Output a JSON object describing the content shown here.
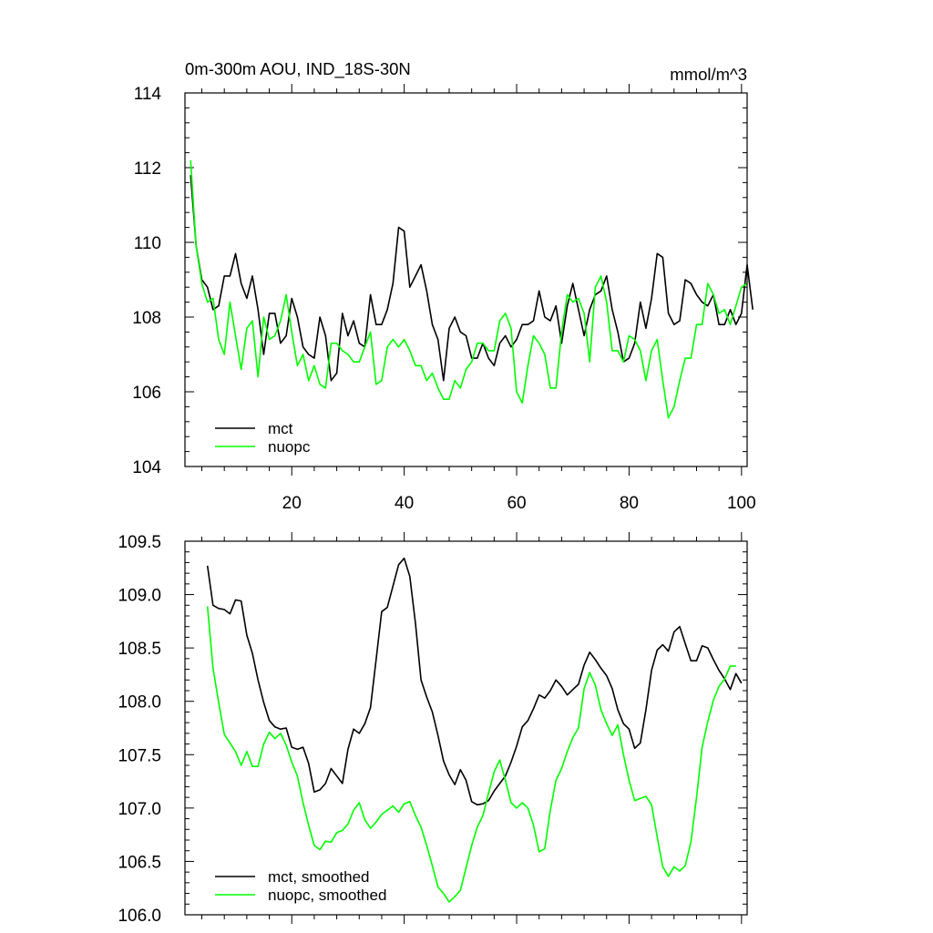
{
  "chart_data": [
    {
      "type": "line",
      "title": "0m-300m AOU, IND_18S-30N",
      "units": "mmol/m^3",
      "xlim": [
        1,
        101
      ],
      "ylim": [
        104,
        114
      ],
      "xticks": [
        20,
        40,
        60,
        80,
        100
      ],
      "yticks": [
        104,
        106,
        108,
        110,
        112,
        114
      ],
      "ytick_labels": [
        "104",
        "106",
        "108",
        "110",
        "112",
        "114"
      ],
      "legend_position": "bottom-left",
      "x_start": 2,
      "series": [
        {
          "name": "mct",
          "color": "#000000",
          "values": [
            111.8,
            109.9,
            109.0,
            108.8,
            108.2,
            108.3,
            109.1,
            109.1,
            109.7,
            108.9,
            108.5,
            109.1,
            108.2,
            107.0,
            108.1,
            108.1,
            107.3,
            107.5,
            108.5,
            108.0,
            107.2,
            107.0,
            106.9,
            108.0,
            107.5,
            106.3,
            106.5,
            108.1,
            107.5,
            107.9,
            107.3,
            107.2,
            108.6,
            107.8,
            107.8,
            108.2,
            108.9,
            110.4,
            110.3,
            108.8,
            109.1,
            109.4,
            108.7,
            107.8,
            107.4,
            106.3,
            107.7,
            108.0,
            107.6,
            107.5,
            106.9,
            106.9,
            107.3,
            106.9,
            106.7,
            107.3,
            107.5,
            107.2,
            107.4,
            107.8,
            107.8,
            107.9,
            108.7,
            108.0,
            107.9,
            108.3,
            107.3,
            108.3,
            108.9,
            108.2,
            107.5,
            108.2,
            108.6,
            108.7,
            109.1,
            108.2,
            107.6,
            106.8,
            106.9,
            107.3,
            108.4,
            107.7,
            108.5,
            109.7,
            109.6,
            108.1,
            107.8,
            107.9,
            109.0,
            108.9,
            108.6,
            108.4,
            108.3,
            108.6,
            107.8,
            107.8,
            108.2,
            107.8,
            108.1,
            109.4,
            108.2
          ]
        },
        {
          "name": "nuopc",
          "color": "#00ff00",
          "values": [
            112.2,
            109.9,
            108.9,
            108.4,
            108.5,
            107.4,
            107.0,
            108.4,
            107.5,
            106.6,
            107.7,
            107.9,
            106.4,
            108.0,
            107.4,
            107.5,
            107.9,
            108.6,
            107.6,
            106.7,
            107.0,
            106.3,
            106.7,
            106.2,
            106.1,
            107.3,
            107.3,
            107.1,
            107.0,
            106.8,
            106.8,
            107.2,
            107.6,
            106.2,
            106.3,
            107.2,
            107.4,
            107.2,
            107.4,
            107.1,
            106.7,
            106.7,
            106.3,
            106.5,
            106.1,
            105.8,
            105.8,
            106.3,
            106.1,
            106.6,
            106.8,
            107.3,
            107.3,
            107.1,
            107.1,
            107.9,
            108.1,
            107.7,
            106.0,
            105.7,
            106.7,
            107.5,
            107.3,
            107.0,
            106.1,
            106.1,
            107.6,
            108.6,
            108.4,
            108.5,
            108.1,
            106.8,
            108.8,
            109.1,
            108.4,
            107.1,
            107.1,
            106.8,
            107.5,
            107.4,
            107.1,
            106.3,
            107.1,
            107.4,
            106.3,
            105.3,
            105.6,
            106.3,
            106.9,
            106.9,
            107.8,
            107.8,
            108.9,
            108.6,
            108.1,
            108.2,
            107.8,
            108.3,
            108.8,
            108.9
          ]
        }
      ]
    },
    {
      "type": "line",
      "title": "",
      "units": "",
      "xlim": [
        1,
        101
      ],
      "ylim": [
        106.0,
        109.5
      ],
      "xticks": [
        20,
        40,
        60,
        80,
        100
      ],
      "yticks": [
        106.0,
        106.5,
        107.0,
        107.5,
        108.0,
        108.5,
        109.0,
        109.5
      ],
      "ytick_labels": [
        "106.0",
        "106.5",
        "107.0",
        "107.5",
        "108.0",
        "108.5",
        "109.0",
        "109.5"
      ],
      "legend_position": "bottom-left",
      "x_start": 5,
      "series": [
        {
          "name": "mct, smoothed",
          "color": "#000000",
          "values": [
            109.27,
            108.9,
            108.87,
            108.86,
            108.82,
            108.95,
            108.94,
            108.62,
            108.45,
            108.2,
            107.99,
            107.82,
            107.76,
            107.74,
            107.75,
            107.57,
            107.55,
            107.57,
            107.42,
            107.15,
            107.17,
            107.23,
            107.37,
            107.3,
            107.23,
            107.55,
            107.74,
            107.7,
            107.79,
            107.94,
            108.39,
            108.84,
            108.88,
            109.08,
            109.28,
            109.34,
            109.17,
            108.73,
            108.2,
            108.04,
            107.9,
            107.68,
            107.44,
            107.31,
            107.22,
            107.36,
            107.26,
            107.06,
            107.03,
            107.04,
            107.07,
            107.16,
            107.23,
            107.3,
            107.43,
            107.58,
            107.76,
            107.82,
            107.93,
            108.06,
            108.03,
            108.1,
            108.2,
            108.14,
            108.06,
            108.11,
            108.16,
            108.34,
            108.46,
            108.39,
            108.31,
            108.24,
            108.12,
            107.92,
            107.79,
            107.74,
            107.56,
            107.61,
            107.92,
            108.29,
            108.48,
            108.53,
            108.47,
            108.65,
            108.7,
            108.54,
            108.38,
            108.38,
            108.52,
            108.5,
            108.39,
            108.29,
            108.21,
            108.11,
            108.26,
            108.17
          ]
        },
        {
          "name": "nuopc, smoothed",
          "color": "#00ff00",
          "values": [
            108.89,
            108.31,
            107.99,
            107.69,
            107.61,
            107.53,
            107.4,
            107.53,
            107.39,
            107.39,
            107.6,
            107.71,
            107.65,
            107.7,
            107.59,
            107.43,
            107.3,
            107.05,
            106.84,
            106.65,
            106.61,
            106.69,
            106.68,
            106.77,
            106.79,
            106.85,
            106.98,
            107.05,
            106.89,
            106.81,
            106.87,
            106.94,
            106.98,
            107.02,
            106.96,
            107.04,
            107.06,
            106.93,
            106.82,
            106.65,
            106.46,
            106.26,
            106.2,
            106.12,
            106.17,
            106.23,
            106.44,
            106.65,
            106.82,
            106.93,
            107.14,
            107.34,
            107.45,
            107.26,
            107.05,
            107.0,
            107.05,
            107.0,
            106.84,
            106.59,
            106.62,
            106.98,
            107.26,
            107.37,
            107.53,
            107.66,
            107.75,
            108.12,
            108.27,
            108.15,
            107.92,
            107.79,
            107.68,
            107.78,
            107.5,
            107.26,
            107.07,
            107.09,
            107.11,
            107.03,
            106.73,
            106.45,
            106.36,
            106.45,
            106.41,
            106.46,
            106.68,
            107.1,
            107.57,
            107.81,
            108.01,
            108.14,
            108.21,
            108.33,
            108.33
          ]
        }
      ]
    }
  ]
}
